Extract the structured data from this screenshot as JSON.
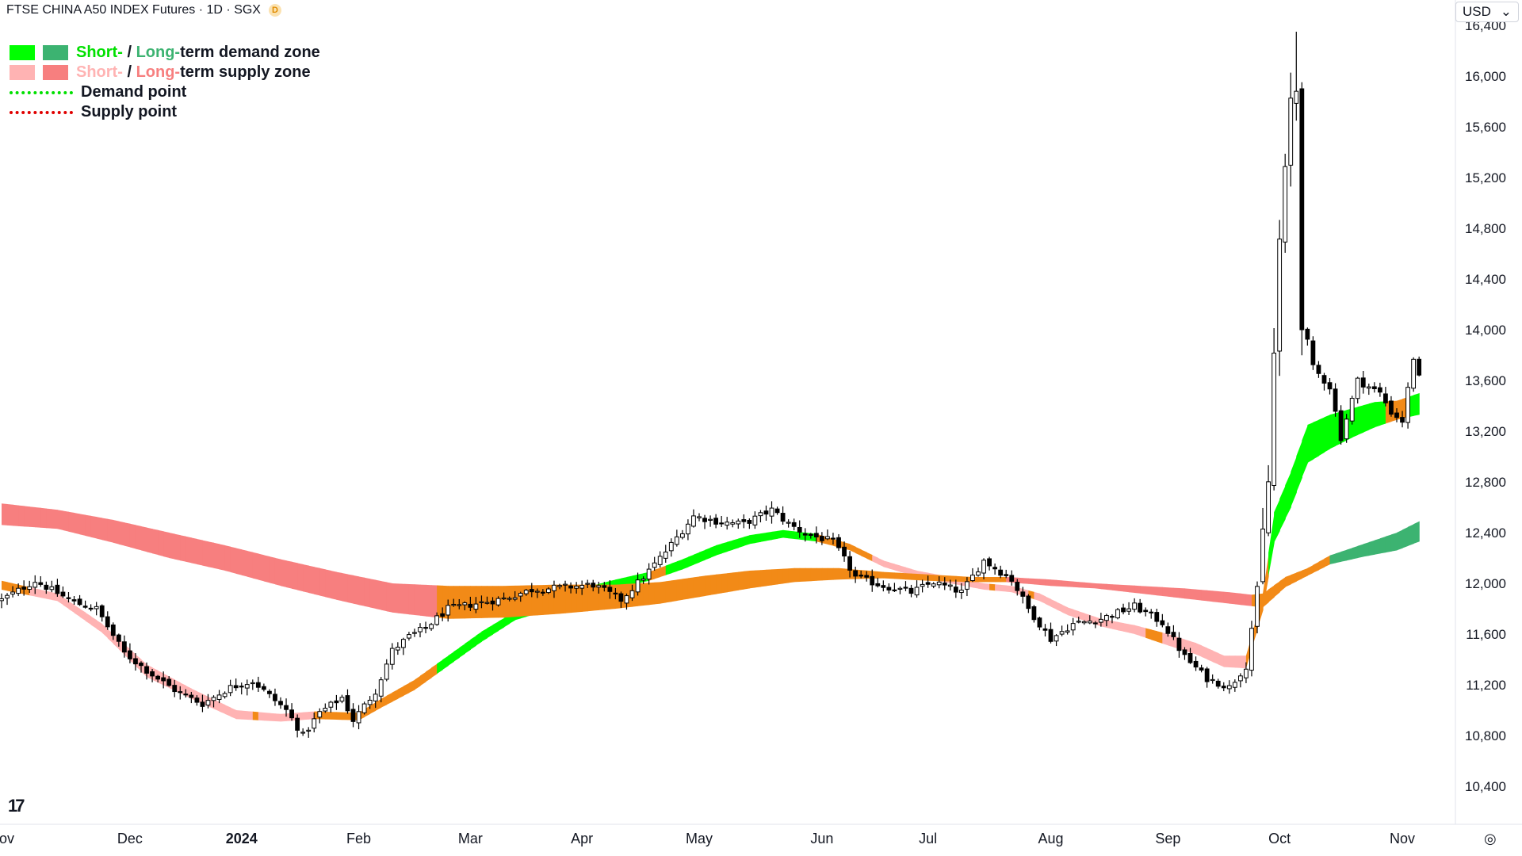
{
  "header": {
    "title": "FTSE CHINA A50 INDEX Futures · 1D · SGX",
    "badge": "D",
    "currency": "USD",
    "currency_caret": "⌄"
  },
  "legend": {
    "row1": {
      "short": "Short-",
      "sep": " / ",
      "long": "Long-",
      "rest": "term demand zone",
      "short_color": "#00ff00",
      "long_color": "#3cb371"
    },
    "row2": {
      "short": "Short-",
      "sep": " / ",
      "long": "Long-",
      "rest": "term supply zone",
      "short_color": "#ffb3b3",
      "long_color": "#f77f7f"
    },
    "row3": {
      "label": "Demand point",
      "color": "#00e000"
    },
    "row4": {
      "label": "Supply point",
      "color": "#e00000"
    }
  },
  "colors": {
    "candle": "#000000",
    "demand_short": "#00ff00",
    "demand_long": "#3cb371",
    "supply_short": "#ffb3b3",
    "supply_long": "#f77f7f",
    "neutral": "#f28a17",
    "axis_text": "#131722",
    "axis_line": "#e0e3eb"
  },
  "logo": {
    "text": "17"
  },
  "settings_icon": "◎",
  "chart_data": {
    "type": "candlestick",
    "title": "FTSE CHINA A50 INDEX Futures",
    "ylim": [
      10100,
      16600
    ],
    "y_ticks": [
      10400,
      10800,
      11200,
      11600,
      12000,
      12400,
      12800,
      13200,
      13600,
      14000,
      14400,
      14800,
      15200,
      15600,
      16000,
      16400
    ],
    "y_tick_labels": [
      "10,400",
      "10,800",
      "11,200",
      "11,600",
      "12,000",
      "12,400",
      "12,800",
      "13,200",
      "13,600",
      "14,000",
      "14,400",
      "14,800",
      "15,200",
      "15,600",
      "16,000",
      "16,400"
    ],
    "x_labels": [
      {
        "t": 0,
        "label": "Nov"
      },
      {
        "t": 23,
        "label": "Dec"
      },
      {
        "t": 43,
        "label": "2024"
      },
      {
        "t": 64,
        "label": "Feb"
      },
      {
        "t": 84,
        "label": "Mar"
      },
      {
        "t": 104,
        "label": "Apr"
      },
      {
        "t": 125,
        "label": "May"
      },
      {
        "t": 147,
        "label": "Jun"
      },
      {
        "t": 166,
        "label": "Jul"
      },
      {
        "t": 188,
        "label": "Aug"
      },
      {
        "t": 209,
        "label": "Sep"
      },
      {
        "t": 229,
        "label": "Oct"
      },
      {
        "t": 251,
        "label": "Nov"
      }
    ],
    "x_max": 276,
    "price_keys": [
      [
        0,
        11870
      ],
      [
        6,
        12020
      ],
      [
        13,
        11850
      ],
      [
        17,
        11800
      ],
      [
        22,
        11450
      ],
      [
        27,
        11280
      ],
      [
        32,
        11130
      ],
      [
        36,
        11050
      ],
      [
        41,
        11180
      ],
      [
        45,
        11230
      ],
      [
        51,
        11000
      ],
      [
        54,
        10800
      ],
      [
        57,
        10980
      ],
      [
        61,
        11100
      ],
      [
        63,
        10920
      ],
      [
        67,
        11150
      ],
      [
        70,
        11470
      ],
      [
        73,
        11580
      ],
      [
        76,
        11650
      ],
      [
        80,
        11800
      ],
      [
        85,
        11840
      ],
      [
        90,
        11880
      ],
      [
        95,
        11950
      ],
      [
        101,
        11970
      ],
      [
        106,
        11990
      ],
      [
        111,
        11870
      ],
      [
        115,
        12050
      ],
      [
        119,
        12250
      ],
      [
        124,
        12530
      ],
      [
        129,
        12480
      ],
      [
        133,
        12470
      ],
      [
        138,
        12580
      ],
      [
        141,
        12470
      ],
      [
        144,
        12390
      ],
      [
        149,
        12330
      ],
      [
        153,
        12050
      ],
      [
        158,
        11980
      ],
      [
        163,
        11930
      ],
      [
        167,
        12010
      ],
      [
        172,
        11930
      ],
      [
        176,
        12180
      ],
      [
        181,
        12030
      ],
      [
        184,
        11800
      ],
      [
        188,
        11560
      ],
      [
        192,
        11680
      ],
      [
        197,
        11720
      ],
      [
        203,
        11820
      ],
      [
        208,
        11690
      ],
      [
        212,
        11420
      ],
      [
        216,
        11250
      ],
      [
        220,
        11180
      ],
      [
        223,
        11350
      ],
      [
        225,
        11950
      ],
      [
        227,
        12800
      ],
      [
        228,
        13800
      ],
      [
        229,
        14700
      ],
      [
        230,
        15200
      ],
      [
        231,
        15800
      ],
      [
        232,
        15900
      ],
      [
        233,
        14100
      ],
      [
        235,
        13700
      ],
      [
        238,
        13550
      ],
      [
        240,
        13150
      ],
      [
        243,
        13600
      ],
      [
        247,
        13500
      ],
      [
        249,
        13350
      ],
      [
        251,
        13280
      ],
      [
        253,
        13780
      ],
      [
        254,
        13620
      ]
    ],
    "series": [
      {
        "name": "Short-term zone",
        "upper": [
          [
            0,
            12020
          ],
          [
            10,
            11920
          ],
          [
            18,
            11680
          ],
          [
            26,
            11360
          ],
          [
            34,
            11170
          ],
          [
            42,
            11000
          ],
          [
            50,
            10970
          ],
          [
            56,
            10990
          ],
          [
            64,
            10980
          ],
          [
            68,
            11090
          ],
          [
            74,
            11240
          ],
          [
            80,
            11430
          ],
          [
            86,
            11620
          ],
          [
            92,
            11780
          ],
          [
            98,
            11860
          ],
          [
            103,
            11950
          ],
          [
            110,
            12030
          ],
          [
            116,
            12090
          ],
          [
            122,
            12190
          ],
          [
            128,
            12300
          ],
          [
            134,
            12380
          ],
          [
            140,
            12420
          ],
          [
            146,
            12390
          ],
          [
            152,
            12310
          ],
          [
            158,
            12180
          ],
          [
            164,
            12100
          ],
          [
            170,
            12050
          ],
          [
            176,
            12000
          ],
          [
            181,
            11980
          ],
          [
            186,
            11920
          ],
          [
            191,
            11810
          ],
          [
            197,
            11720
          ],
          [
            203,
            11670
          ],
          [
            209,
            11600
          ],
          [
            214,
            11530
          ],
          [
            219,
            11430
          ],
          [
            223,
            11430
          ],
          [
            226,
            11920
          ],
          [
            228,
            12560
          ],
          [
            231,
            12880
          ],
          [
            234,
            13250
          ],
          [
            238,
            13330
          ],
          [
            242,
            13380
          ],
          [
            246,
            13430
          ],
          [
            250,
            13440
          ],
          [
            254,
            13500
          ]
        ],
        "lower": [
          [
            0,
            11950
          ],
          [
            10,
            11860
          ],
          [
            18,
            11610
          ],
          [
            26,
            11260
          ],
          [
            34,
            11090
          ],
          [
            42,
            10930
          ],
          [
            50,
            10910
          ],
          [
            56,
            10930
          ],
          [
            64,
            10920
          ],
          [
            68,
            11020
          ],
          [
            74,
            11160
          ],
          [
            80,
            11350
          ],
          [
            86,
            11540
          ],
          [
            92,
            11710
          ],
          [
            98,
            11790
          ],
          [
            103,
            11880
          ],
          [
            110,
            11960
          ],
          [
            116,
            12020
          ],
          [
            122,
            12110
          ],
          [
            128,
            12220
          ],
          [
            134,
            12310
          ],
          [
            140,
            12360
          ],
          [
            146,
            12330
          ],
          [
            152,
            12260
          ],
          [
            158,
            12130
          ],
          [
            164,
            12050
          ],
          [
            170,
            12000
          ],
          [
            176,
            11950
          ],
          [
            181,
            11930
          ],
          [
            186,
            11860
          ],
          [
            191,
            11750
          ],
          [
            197,
            11660
          ],
          [
            203,
            11600
          ],
          [
            209,
            11510
          ],
          [
            214,
            11440
          ],
          [
            219,
            11340
          ],
          [
            223,
            11330
          ],
          [
            226,
            11790
          ],
          [
            228,
            12320
          ],
          [
            231,
            12600
          ],
          [
            234,
            12950
          ],
          [
            238,
            13060
          ],
          [
            242,
            13150
          ],
          [
            246,
            13230
          ],
          [
            250,
            13290
          ],
          [
            254,
            13330
          ]
        ],
        "colors": [
          [
            0,
            "#f28a17"
          ],
          [
            5,
            "#ffb3b3"
          ],
          [
            45,
            "#f28a17"
          ],
          [
            46,
            "#ffb3b3"
          ],
          [
            56,
            "#f28a17"
          ],
          [
            78,
            "#00ff00"
          ],
          [
            116,
            "#f28a17"
          ],
          [
            119,
            "#00ff00"
          ],
          [
            146,
            "#f28a17"
          ],
          [
            156,
            "#ffb3b3"
          ],
          [
            177,
            "#f28a17"
          ],
          [
            178,
            "#ffb3b3"
          ],
          [
            184,
            "#f28a17"
          ],
          [
            185,
            "#ffb3b3"
          ],
          [
            205,
            "#f28a17"
          ],
          [
            208,
            "#ffb3b3"
          ],
          [
            223,
            "#f28a17"
          ],
          [
            227,
            "#00ff00"
          ],
          [
            248,
            "#f28a17"
          ],
          [
            252,
            "#00ff00"
          ],
          [
            254,
            "#00ff00"
          ]
        ]
      },
      {
        "name": "Long-term zone",
        "upper": [
          [
            0,
            12630
          ],
          [
            10,
            12580
          ],
          [
            20,
            12500
          ],
          [
            30,
            12400
          ],
          [
            40,
            12300
          ],
          [
            50,
            12190
          ],
          [
            60,
            12090
          ],
          [
            70,
            12000
          ],
          [
            80,
            11980
          ],
          [
            90,
            11980
          ],
          [
            100,
            11990
          ],
          [
            110,
            11990
          ],
          [
            118,
            12010
          ],
          [
            126,
            12060
          ],
          [
            134,
            12100
          ],
          [
            142,
            12120
          ],
          [
            150,
            12120
          ],
          [
            158,
            12090
          ],
          [
            166,
            12070
          ],
          [
            174,
            12050
          ],
          [
            180,
            12050
          ],
          [
            188,
            12030
          ],
          [
            196,
            12000
          ],
          [
            204,
            11980
          ],
          [
            212,
            11960
          ],
          [
            220,
            11930
          ],
          [
            224,
            11910
          ],
          [
            226,
            11920
          ],
          [
            230,
            12050
          ],
          [
            234,
            12120
          ],
          [
            238,
            12220
          ],
          [
            244,
            12310
          ],
          [
            250,
            12400
          ],
          [
            254,
            12490
          ]
        ],
        "lower": [
          [
            0,
            12460
          ],
          [
            10,
            12430
          ],
          [
            20,
            12320
          ],
          [
            30,
            12200
          ],
          [
            40,
            12100
          ],
          [
            50,
            11980
          ],
          [
            60,
            11870
          ],
          [
            70,
            11770
          ],
          [
            80,
            11720
          ],
          [
            90,
            11730
          ],
          [
            100,
            11760
          ],
          [
            110,
            11800
          ],
          [
            118,
            11840
          ],
          [
            126,
            11900
          ],
          [
            134,
            11960
          ],
          [
            142,
            12010
          ],
          [
            150,
            12030
          ],
          [
            158,
            12040
          ],
          [
            166,
            12020
          ],
          [
            174,
            12010
          ],
          [
            180,
            12010
          ],
          [
            188,
            11980
          ],
          [
            196,
            11960
          ],
          [
            204,
            11920
          ],
          [
            212,
            11880
          ],
          [
            220,
            11840
          ],
          [
            224,
            11820
          ],
          [
            226,
            11810
          ],
          [
            230,
            11970
          ],
          [
            234,
            12060
          ],
          [
            238,
            12150
          ],
          [
            244,
            12210
          ],
          [
            250,
            12260
          ],
          [
            254,
            12330
          ]
        ],
        "colors": [
          [
            0,
            "#f77f7f"
          ],
          [
            78,
            "#f28a17"
          ],
          [
            180,
            "#f77f7f"
          ],
          [
            182,
            "#f77f7f"
          ],
          [
            224,
            "#f28a17"
          ],
          [
            238,
            "#3cb371"
          ],
          [
            254,
            "#3cb371"
          ]
        ]
      }
    ]
  }
}
